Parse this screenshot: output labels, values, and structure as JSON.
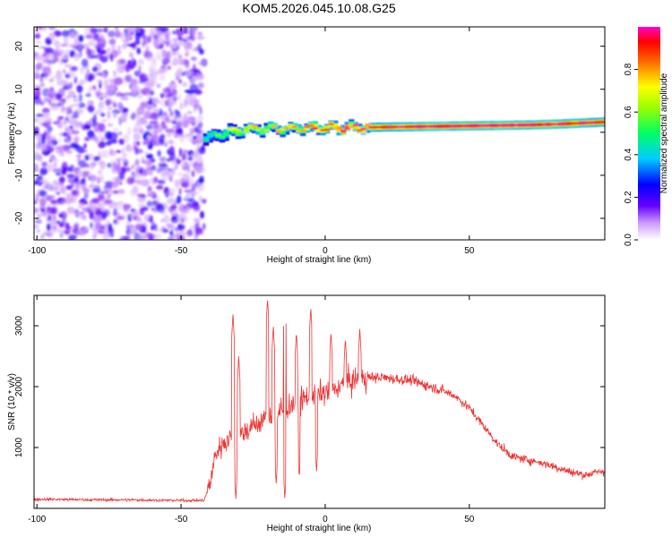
{
  "title": "KOM5.2026.045.10.08.G25",
  "chart_data": [
    {
      "type": "heatmap",
      "name": "spectrogram",
      "xlabel": "Height of straight line (km)",
      "ylabel": "Frequency (Hz)",
      "xlim": [
        -101,
        97
      ],
      "ylim": [
        -25,
        24.5
      ],
      "xticks": [
        -100,
        -50,
        0,
        50
      ],
      "yticks": [
        -20,
        -10,
        0,
        10,
        20
      ],
      "colorbar": {
        "label": "Normalized spectral amplitude",
        "range": [
          0,
          1
        ],
        "ticks": [
          0.0,
          0.2,
          0.4,
          0.6,
          0.8
        ],
        "tick_labels": [
          "0.0",
          "0.2",
          "0.4",
          "0.6",
          "0.8"
        ]
      },
      "noise_region": {
        "x_range": [
          -101,
          -42
        ],
        "amplitude_range": [
          0.0,
          0.2
        ]
      },
      "signal_track": {
        "x": [
          -42,
          -38,
          -32,
          -26,
          -20,
          -10,
          0,
          10,
          20,
          30,
          40,
          50,
          60,
          70,
          80,
          90,
          97
        ],
        "frequency": [
          -1.5,
          -0.8,
          0.3,
          0.7,
          0.8,
          0.9,
          1.0,
          1.1,
          1.2,
          1.3,
          1.4,
          1.5,
          1.6,
          1.7,
          1.9,
          2.2,
          2.4
        ],
        "amplitude": [
          0.35,
          0.4,
          0.5,
          0.55,
          0.55,
          0.6,
          0.75,
          0.8,
          0.85,
          0.9,
          0.92,
          0.93,
          0.93,
          0.92,
          0.9,
          0.88,
          0.85
        ]
      }
    },
    {
      "type": "line",
      "name": "snr",
      "xlabel": "Height of straight line (km)",
      "ylabel": "SNR (10 * v/v)",
      "xlim": [
        -101,
        97
      ],
      "ylim": [
        0,
        3500
      ],
      "xticks": [
        -100,
        -50,
        0,
        50
      ],
      "yticks": [
        1000,
        2000,
        3000
      ],
      "color": "#ee3333",
      "envelope": {
        "x": [
          -101,
          -90,
          -80,
          -70,
          -60,
          -50,
          -42,
          -40,
          -38,
          -35,
          -30,
          -25,
          -20,
          -15,
          -10,
          -5,
          0,
          5,
          10,
          15,
          20,
          30,
          40,
          45,
          50,
          55,
          60,
          65,
          70,
          75,
          80,
          85,
          90,
          97
        ],
        "values": [
          150,
          145,
          140,
          140,
          135,
          130,
          130,
          400,
          900,
          1100,
          1200,
          1350,
          1500,
          1600,
          1750,
          1850,
          1900,
          2000,
          2100,
          2150,
          2150,
          2100,
          1950,
          1850,
          1650,
          1350,
          1050,
          850,
          800,
          750,
          680,
          600,
          550,
          620
        ]
      },
      "spikes": [
        {
          "x": -32,
          "value": 3200
        },
        {
          "x": -30,
          "value": 2500
        },
        {
          "x": -20,
          "value": 3450
        },
        {
          "x": -18,
          "value": 3000
        },
        {
          "x": -14,
          "value": 3400
        },
        {
          "x": -10,
          "value": 2900
        },
        {
          "x": -5,
          "value": 3300
        },
        {
          "x": 2,
          "value": 2900
        },
        {
          "x": 7,
          "value": 2800
        },
        {
          "x": 12,
          "value": 2950
        }
      ],
      "dips": [
        {
          "x": -31,
          "value": 150
        },
        {
          "x": -17,
          "value": 400
        },
        {
          "x": -14,
          "value": 150
        },
        {
          "x": -9,
          "value": 500
        },
        {
          "x": -3,
          "value": 600
        }
      ]
    }
  ]
}
